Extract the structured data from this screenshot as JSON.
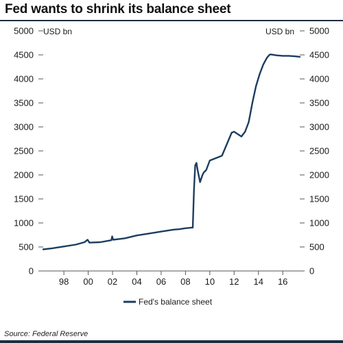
{
  "title": "Fed wants to shrink its balance sheet",
  "source": "Source: Federal Reserve",
  "chart_data": {
    "type": "line",
    "unit_left": "USD bn",
    "unit_right": "USD bn",
    "ylim": [
      0,
      5000
    ],
    "y_ticks": [
      "5000",
      "4500",
      "4000",
      "3500",
      "3000",
      "2500",
      "2000",
      "1500",
      "1000",
      "500",
      "0"
    ],
    "x_ticks": [
      "98",
      "00",
      "02",
      "04",
      "06",
      "08",
      "10",
      "12",
      "14",
      "16"
    ],
    "x_tick_years": [
      1998,
      2000,
      2002,
      2004,
      2006,
      2008,
      2010,
      2012,
      2014,
      2016
    ],
    "xlim": [
      1996.3,
      2017.4
    ],
    "grid": false,
    "legend_position": "bottom-center",
    "series": [
      {
        "name": "Fed's balance sheet",
        "color": "#1b3d5f",
        "x": [
          1996.3,
          1997.0,
          1998.0,
          1999.0,
          1999.7,
          1999.95,
          2000.1,
          2001.0,
          2001.9,
          2001.97,
          2002.05,
          2003.0,
          2004.0,
          2005.0,
          2006.0,
          2007.0,
          2007.5,
          2008.0,
          2008.6,
          2008.7,
          2008.8,
          2008.9,
          2009.0,
          2009.2,
          2009.4,
          2009.5,
          2009.7,
          2010.0,
          2010.5,
          2011.0,
          2011.5,
          2011.8,
          2012.0,
          2012.3,
          2012.6,
          2012.9,
          2013.2,
          2013.5,
          2013.8,
          2014.1,
          2014.4,
          2014.7,
          2014.9,
          2015.0,
          2015.5,
          2016.0,
          2016.5,
          2017.0,
          2017.4
        ],
        "y": [
          450,
          470,
          510,
          550,
          600,
          650,
          590,
          600,
          640,
          720,
          650,
          680,
          740,
          780,
          820,
          860,
          870,
          890,
          905,
          1700,
          2200,
          2250,
          2100,
          1850,
          2000,
          2050,
          2100,
          2300,
          2350,
          2400,
          2700,
          2880,
          2900,
          2850,
          2800,
          2900,
          3100,
          3500,
          3850,
          4100,
          4300,
          4440,
          4500,
          4510,
          4490,
          4480,
          4480,
          4470,
          4460
        ]
      }
    ]
  }
}
